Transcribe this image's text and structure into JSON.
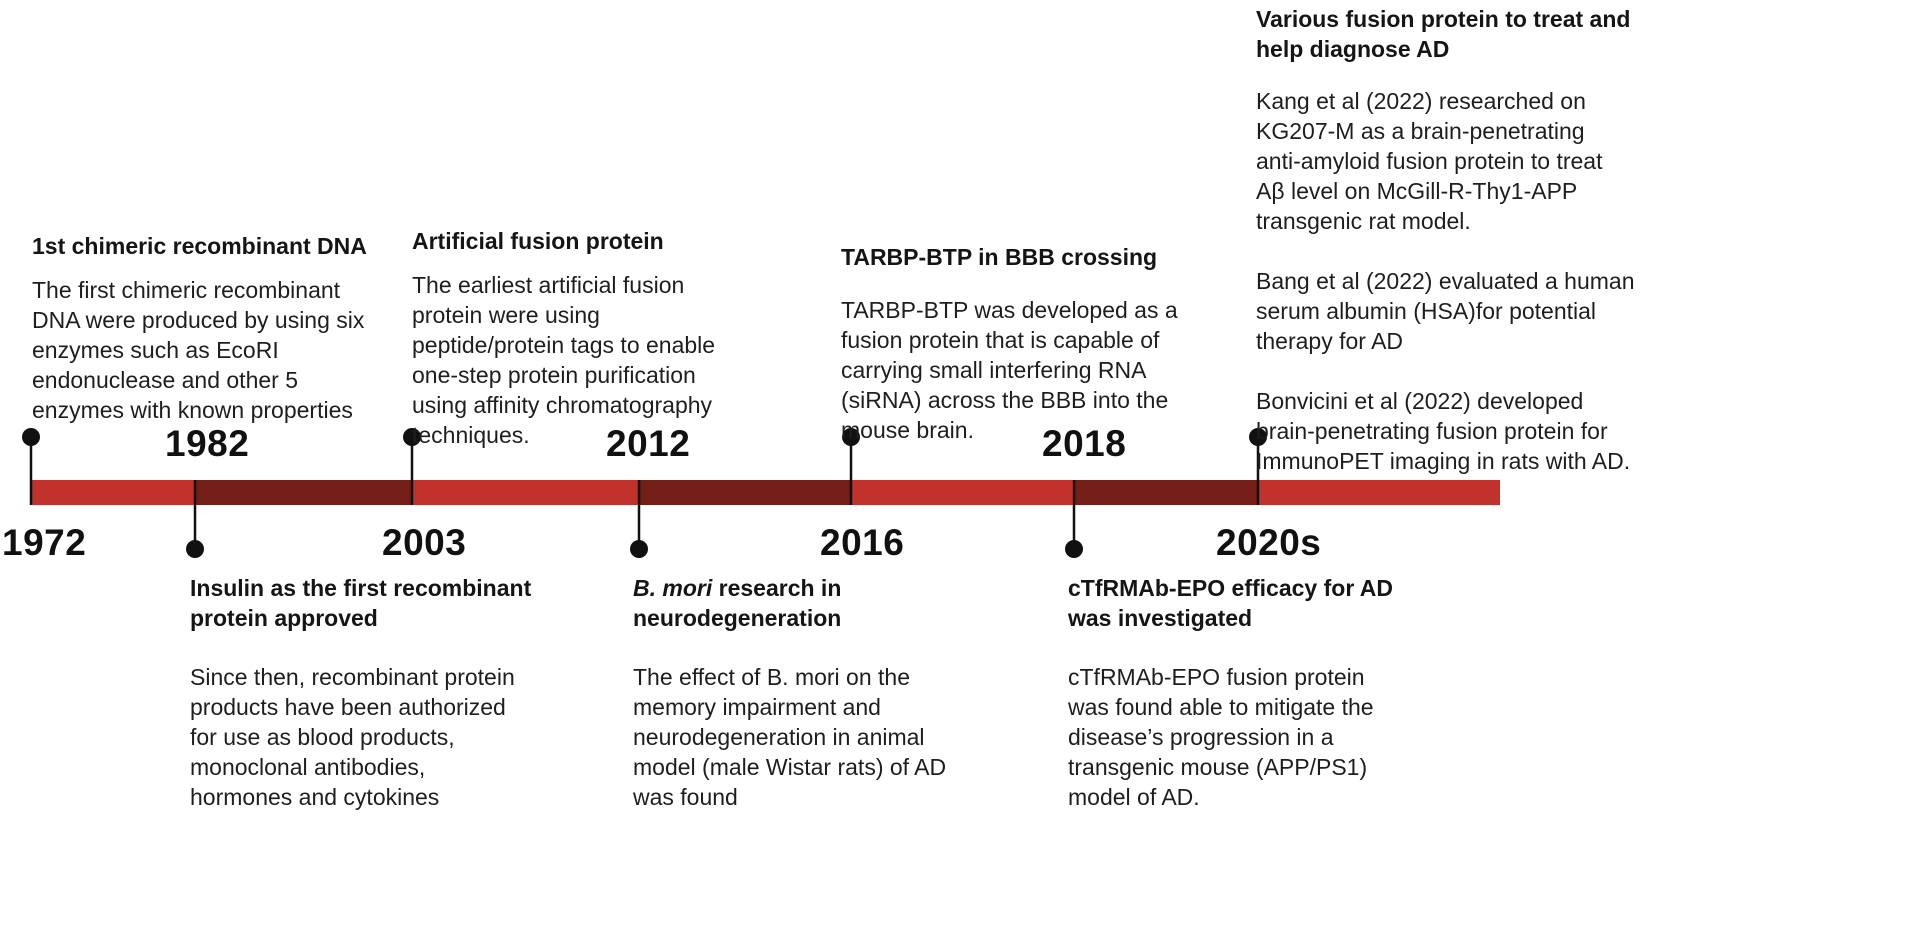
{
  "colors": {
    "track_light": "#c2322d",
    "track_dark": "#731e16",
    "stem": "#111111",
    "dot": "#111111"
  },
  "years": {
    "y1972": "1972",
    "y1982": "1982",
    "y2003": "2003",
    "y2012": "2012",
    "y2016": "2016",
    "y2018": "2018",
    "y2020s": "2020s"
  },
  "events": {
    "e1972": {
      "title": "1st chimeric recombinant DNA",
      "lines": [
        "The first chimeric recombinant",
        "DNA were produced by using six",
        "enzymes such as EcoRI",
        "endonuclease and other 5",
        "enzymes with known properties"
      ]
    },
    "e1982": {
      "title_lines": [
        "Insulin as the first recombinant",
        "protein approved"
      ],
      "lines": [
        "Since then, recombinant protein",
        "products have been authorized",
        "for use as blood products,",
        "monoclonal antibodies,",
        "hormones and cytokines"
      ]
    },
    "e2003": {
      "title": "Artificial fusion protein",
      "lines": [
        "The earliest artificial fusion",
        "protein were using",
        "peptide/protein tags to enable",
        "one-step protein purification",
        "using affinity chromatography",
        "techniques."
      ]
    },
    "e2012": {
      "title_italic": "B. mori",
      "title_rest": " research in",
      "title_line2": "neurodegeneration",
      "lines": [
        "The effect of B. mori on the",
        "memory impairment and",
        "neurodegeneration in animal",
        "model (male Wistar rats) of AD",
        "was found"
      ]
    },
    "e2016": {
      "title": "TARBP-BTP in BBB crossing",
      "lines": [
        "TARBP-BTP was developed as a",
        "fusion protein that is capable of",
        "carrying small interfering RNA",
        "(siRNA) across the BBB into the",
        "mouse brain."
      ]
    },
    "e2018": {
      "title_lines": [
        "cTfRMAb-EPO efficacy for AD",
        "was investigated"
      ],
      "lines": [
        "cTfRMAb-EPO fusion protein",
        "was found able to mitigate the",
        "disease’s progression in a",
        "transgenic mouse (APP/PS1)",
        "model of AD."
      ]
    },
    "e2020s": {
      "title_lines": [
        "Various fusion protein to treat and",
        "help diagnose AD"
      ],
      "para1": [
        "Kang et al (2022) researched on",
        "KG207-M as a brain-penetrating",
        "anti-amyloid fusion protein to treat",
        "Aβ level on McGill-R-Thy1-APP",
        "transgenic rat model."
      ],
      "para2": [
        "Bang et al (2022) evaluated a human",
        "serum albumin (HSA)for potential",
        "therapy for AD"
      ],
      "para3": [
        "Bonvicini et al (2022) developed",
        "brain-penetrating fusion protein for",
        "ImmunoPET imaging in rats with AD."
      ]
    }
  }
}
